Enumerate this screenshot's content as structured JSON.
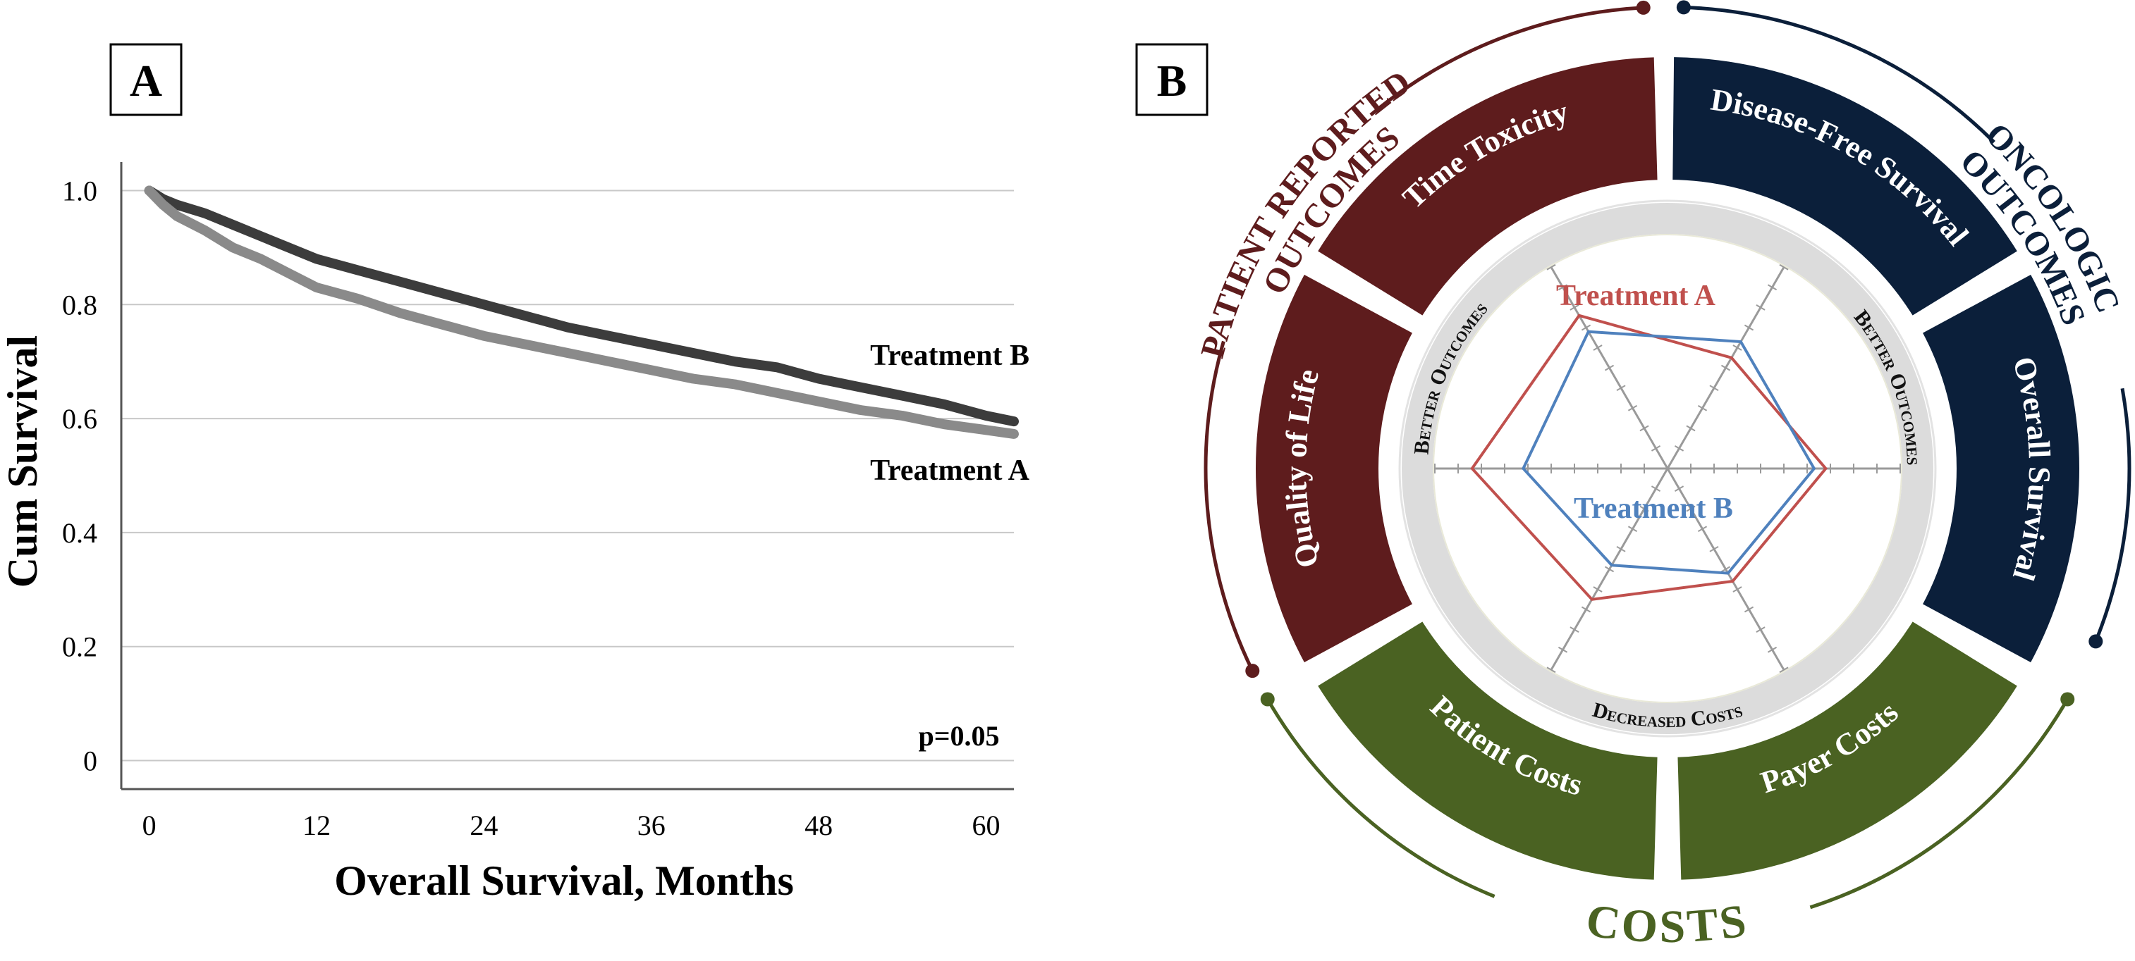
{
  "panel_a": {
    "letter": "A",
    "p_value": "p=0.05"
  },
  "panel_b": {
    "letter": "B",
    "outer_labels": {
      "oncologic": [
        "ONCOLOGIC",
        "OUTCOMES"
      ],
      "patient_reported": [
        "PATIENT REPORTED",
        "OUTCOMES"
      ],
      "costs": "COSTS"
    },
    "segments": [
      {
        "label": "Disease-Free Survival",
        "group": "oncologic"
      },
      {
        "label": "Overall Survival",
        "group": "oncologic"
      },
      {
        "label": "Payer Costs",
        "group": "costs"
      },
      {
        "label": "Patient Costs",
        "group": "costs"
      },
      {
        "label": "Quality of Life",
        "group": "patient_reported"
      },
      {
        "label": "Time Toxicity",
        "group": "patient_reported"
      }
    ],
    "inner_ring_labels": {
      "better_outcomes_right": "Better Outcomes",
      "better_outcomes_left": "Better Outcomes",
      "decreased_costs": "Decreased Costs"
    },
    "colors": {
      "oncologic": "#0b1f3a",
      "patient_reported": "#5e1c1d",
      "costs": "#4a6222",
      "treatment_a": "#c0504d",
      "treatment_b": "#4f81bd"
    }
  },
  "chart_data": [
    {
      "type": "line",
      "title": "",
      "xlabel": "Overall Survival, Months",
      "ylabel": "Cum Survival",
      "xlim": [
        -2,
        62
      ],
      "ylim": [
        -0.05,
        1.05
      ],
      "xticks": [
        0,
        12,
        24,
        36,
        48,
        60
      ],
      "yticks": [
        0,
        0.2,
        0.4,
        0.6,
        0.8,
        1.0
      ],
      "ytick_labels": [
        "0",
        "0.2",
        "0.4",
        "0.6",
        "0.8",
        "1.0"
      ],
      "grid": true,
      "annotation": "p=0.05",
      "series": [
        {
          "name": "Treatment B",
          "color": "#3c3c3c",
          "x": [
            0,
            1,
            2,
            4,
            6,
            8,
            10,
            12,
            15,
            18,
            21,
            24,
            27,
            30,
            33,
            36,
            39,
            42,
            45,
            48,
            51,
            54,
            57,
            60,
            62
          ],
          "y": [
            1.0,
            0.985,
            0.975,
            0.96,
            0.94,
            0.92,
            0.9,
            0.88,
            0.86,
            0.84,
            0.82,
            0.8,
            0.78,
            0.76,
            0.745,
            0.73,
            0.715,
            0.7,
            0.69,
            0.67,
            0.655,
            0.64,
            0.625,
            0.605,
            0.595
          ]
        },
        {
          "name": "Treatment A",
          "color": "#8a8a8a",
          "x": [
            0,
            1,
            2,
            4,
            6,
            8,
            10,
            12,
            15,
            18,
            21,
            24,
            27,
            30,
            33,
            36,
            39,
            42,
            45,
            48,
            51,
            54,
            57,
            60,
            62
          ],
          "y": [
            1.0,
            0.975,
            0.955,
            0.93,
            0.9,
            0.88,
            0.855,
            0.83,
            0.81,
            0.785,
            0.765,
            0.745,
            0.73,
            0.715,
            0.7,
            0.685,
            0.67,
            0.66,
            0.645,
            0.63,
            0.615,
            0.605,
            0.59,
            0.58,
            0.573
          ]
        }
      ]
    },
    {
      "type": "radar",
      "title": "",
      "axes": [
        "Disease-Free Survival",
        "Overall Survival",
        "Payer Costs",
        "Patient Costs",
        "Quality of Life",
        "Time Toxicity"
      ],
      "axis_max": 10,
      "series": [
        {
          "name": "Treatment A",
          "color": "#c0504d",
          "values": [
            5.5,
            6.8,
            5.6,
            6.5,
            8.4,
            7.6
          ]
        },
        {
          "name": "Treatment B",
          "color": "#4f81bd",
          "values": [
            6.3,
            6.3,
            5.2,
            4.8,
            6.2,
            6.8
          ]
        }
      ]
    }
  ]
}
